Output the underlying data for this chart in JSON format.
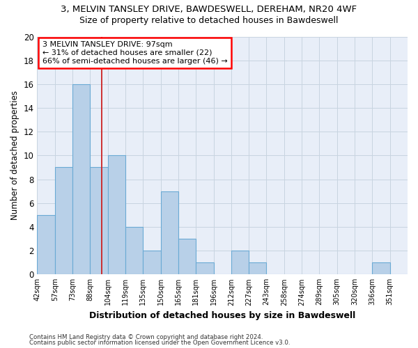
{
  "title1": "3, MELVIN TANSLEY DRIVE, BAWDESWELL, DEREHAM, NR20 4WF",
  "title2": "Size of property relative to detached houses in Bawdeswell",
  "xlabel": "Distribution of detached houses by size in Bawdeswell",
  "ylabel": "Number of detached properties",
  "bin_labels": [
    "42sqm",
    "57sqm",
    "73sqm",
    "88sqm",
    "104sqm",
    "119sqm",
    "135sqm",
    "150sqm",
    "165sqm",
    "181sqm",
    "196sqm",
    "212sqm",
    "227sqm",
    "243sqm",
    "258sqm",
    "274sqm",
    "289sqm",
    "305sqm",
    "320sqm",
    "336sqm",
    "351sqm"
  ],
  "counts": [
    5,
    9,
    16,
    9,
    10,
    4,
    2,
    7,
    3,
    1,
    0,
    2,
    1,
    0,
    0,
    0,
    0,
    0,
    0,
    1,
    0
  ],
  "bar_color": "#b8d0e8",
  "bar_edge_color": "#6aaad4",
  "subject_bin_index": 3.65,
  "annotation_text": "3 MELVIN TANSLEY DRIVE: 97sqm\n← 31% of detached houses are smaller (22)\n66% of semi-detached houses are larger (46) →",
  "annotation_box_color": "white",
  "annotation_box_edge_color": "red",
  "subject_line_color": "#cc2222",
  "grid_color": "#c8d4e0",
  "background_color": "#e8eef8",
  "footer1": "Contains HM Land Registry data © Crown copyright and database right 2024.",
  "footer2": "Contains public sector information licensed under the Open Government Licence v3.0.",
  "ylim": [
    0,
    20
  ],
  "yticks": [
    0,
    2,
    4,
    6,
    8,
    10,
    12,
    14,
    16,
    18,
    20
  ]
}
